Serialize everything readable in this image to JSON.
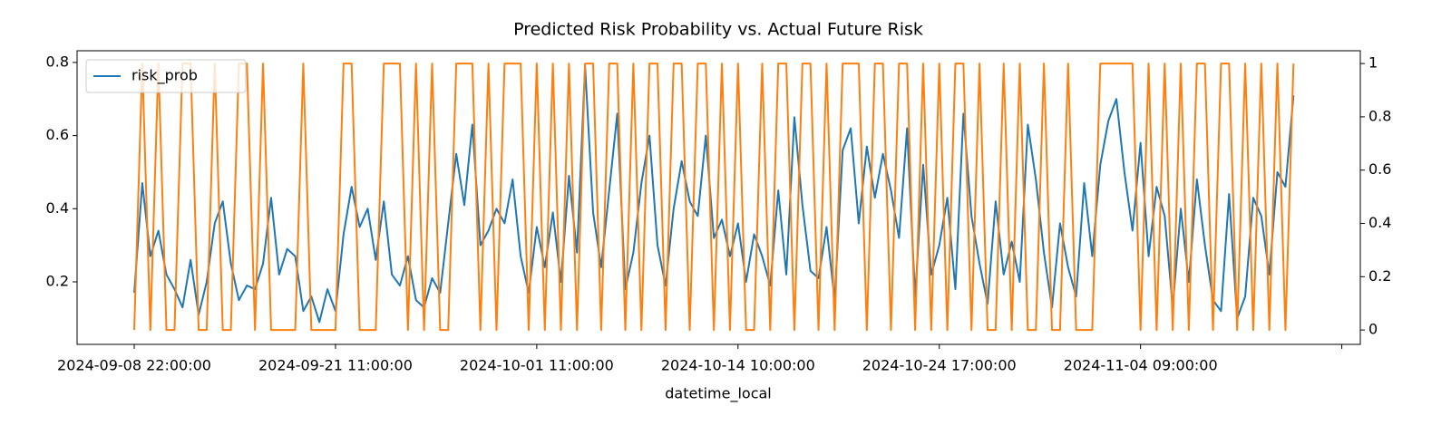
{
  "chart_data": {
    "type": "line",
    "title": "Predicted Risk Probability vs. Actual Future Risk",
    "x_label": "datetime_local",
    "x": [
      0,
      1,
      2,
      3,
      4,
      5,
      6,
      7,
      8,
      9,
      10,
      11,
      12,
      13,
      14,
      15,
      16,
      17,
      18,
      19,
      20,
      21,
      22,
      23,
      24,
      25,
      26,
      27,
      28,
      29,
      30,
      31,
      32,
      33,
      34,
      35,
      36,
      37,
      38,
      39,
      40,
      41,
      42,
      43,
      44,
      45,
      46,
      47,
      48,
      49,
      50,
      51,
      52,
      53,
      54,
      55,
      56,
      57,
      58,
      59,
      60,
      61,
      62,
      63,
      64,
      65,
      66,
      67,
      68,
      69,
      70,
      71,
      72,
      73,
      74,
      75,
      76,
      77,
      78,
      79,
      80,
      81,
      82,
      83,
      84,
      85,
      86,
      87,
      88,
      89,
      90,
      91,
      92,
      93,
      94,
      95,
      96,
      97,
      98,
      99,
      100,
      101,
      102,
      103,
      104,
      105,
      106,
      107,
      108,
      109,
      110,
      111,
      112,
      113,
      114,
      115,
      116,
      117,
      118,
      119,
      120,
      121,
      122,
      123,
      124,
      125,
      126,
      127,
      128,
      129,
      130,
      131,
      132,
      133,
      134,
      135,
      136,
      137,
      138,
      139,
      140,
      141,
      142,
      143,
      144
    ],
    "xlim": [
      -7.1,
      152.3
    ],
    "xticks": [
      {
        "value": 0,
        "label": "2024-09-08 22:00:00"
      },
      {
        "value": 25,
        "label": "2024-09-21 11:00:00"
      },
      {
        "value": 50,
        "label": "2024-10-01 11:00:00"
      },
      {
        "value": 75,
        "label": "2024-10-14 10:00:00"
      },
      {
        "value": 100,
        "label": "2024-10-24 17:00:00"
      },
      {
        "value": 125,
        "label": "2024-11-04 09:00:00"
      },
      {
        "value": 150,
        "label": null
      }
    ],
    "ylim": [
      0.029,
      0.832
    ],
    "yticks": [
      0.2,
      0.4,
      0.6,
      0.8
    ],
    "y2lim": [
      -0.054,
      1.048
    ],
    "y2ticks": [
      0.0,
      0.2,
      0.4,
      0.6,
      0.8,
      1.0
    ],
    "legend": "upper left",
    "series": [
      {
        "name": "risk_prob",
        "color": "#1f77b4",
        "values": [
          0.17,
          0.47,
          0.27,
          0.34,
          0.22,
          0.18,
          0.13,
          0.26,
          0.11,
          0.2,
          0.36,
          0.42,
          0.25,
          0.15,
          0.19,
          0.18,
          0.25,
          0.43,
          0.22,
          0.29,
          0.27,
          0.12,
          0.16,
          0.09,
          0.18,
          0.12,
          0.33,
          0.46,
          0.35,
          0.4,
          0.26,
          0.42,
          0.22,
          0.19,
          0.27,
          0.15,
          0.13,
          0.21,
          0.17,
          0.36,
          0.55,
          0.41,
          0.63,
          0.3,
          0.34,
          0.4,
          0.36,
          0.48,
          0.27,
          0.17,
          0.35,
          0.24,
          0.39,
          0.2,
          0.49,
          0.28,
          0.79,
          0.39,
          0.24,
          0.45,
          0.66,
          0.18,
          0.28,
          0.47,
          0.6,
          0.3,
          0.19,
          0.4,
          0.53,
          0.42,
          0.38,
          0.6,
          0.32,
          0.37,
          0.27,
          0.36,
          0.2,
          0.33,
          0.27,
          0.19,
          0.45,
          0.22,
          0.65,
          0.41,
          0.23,
          0.21,
          0.35,
          0.15,
          0.56,
          0.62,
          0.36,
          0.57,
          0.43,
          0.55,
          0.45,
          0.32,
          0.62,
          0.16,
          0.52,
          0.22,
          0.3,
          0.43,
          0.18,
          0.66,
          0.38,
          0.25,
          0.14,
          0.42,
          0.22,
          0.31,
          0.2,
          0.63,
          0.48,
          0.28,
          0.13,
          0.36,
          0.24,
          0.16,
          0.47,
          0.27,
          0.52,
          0.64,
          0.7,
          0.5,
          0.34,
          0.58,
          0.27,
          0.46,
          0.38,
          0.13,
          0.4,
          0.2,
          0.48,
          0.3,
          0.15,
          0.12,
          0.44,
          0.1,
          0.16,
          0.43,
          0.38,
          0.22,
          0.5,
          0.46,
          0.71
        ]
      },
      {
        "color": "#ff7f0e",
        "axis": "y2",
        "values": [
          0,
          1,
          0,
          1,
          0,
          0,
          1,
          1,
          0,
          0,
          1,
          0,
          0,
          1,
          1,
          0,
          1,
          0,
          0,
          0,
          0,
          1,
          0,
          0,
          0,
          0,
          1,
          1,
          0,
          0,
          0,
          1,
          1,
          1,
          0,
          1,
          0,
          1,
          0,
          0,
          1,
          1,
          1,
          0,
          1,
          0,
          1,
          1,
          1,
          0,
          1,
          0,
          1,
          0,
          1,
          0,
          1,
          1,
          0,
          1,
          1,
          0,
          1,
          0,
          1,
          1,
          0,
          1,
          1,
          0,
          1,
          1,
          0,
          1,
          0,
          1,
          0,
          0,
          1,
          0,
          1,
          1,
          0,
          1,
          1,
          0,
          1,
          0,
          1,
          1,
          1,
          0,
          1,
          1,
          0,
          1,
          1,
          0,
          1,
          0,
          1,
          0,
          1,
          1,
          0,
          1,
          0,
          0,
          1,
          0,
          1,
          0,
          0,
          1,
          0,
          0,
          1,
          0,
          0,
          0,
          1,
          1,
          1,
          1,
          1,
          0,
          1,
          0,
          1,
          0,
          1,
          0,
          1,
          1,
          0,
          1,
          1,
          0,
          1,
          0,
          1,
          0,
          1,
          0,
          1
        ]
      }
    ]
  }
}
